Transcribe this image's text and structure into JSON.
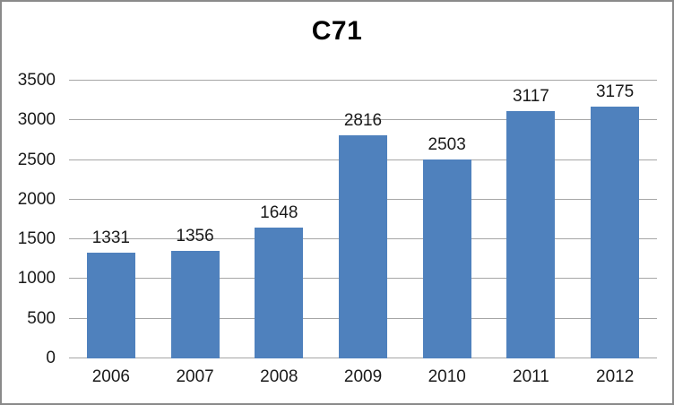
{
  "chart": {
    "colors": {
      "bar": "#4F81BD",
      "gridline": "#A6A6A6",
      "border": "#8A8A8A",
      "text": "#1A1A1A",
      "background": "#FFFFFF"
    }
  },
  "chart_data": {
    "type": "bar",
    "title": "C71",
    "categories": [
      "2006",
      "2007",
      "2008",
      "2009",
      "2010",
      "2011",
      "2012"
    ],
    "values": [
      1331,
      1356,
      1648,
      2816,
      2503,
      3117,
      3175
    ],
    "xlabel": "",
    "ylabel": "",
    "ylim": [
      0,
      3500
    ],
    "yticks": [
      0,
      500,
      1000,
      1500,
      2000,
      2500,
      3000,
      3500
    ],
    "grid": true,
    "legend": false,
    "data_labels": true
  }
}
